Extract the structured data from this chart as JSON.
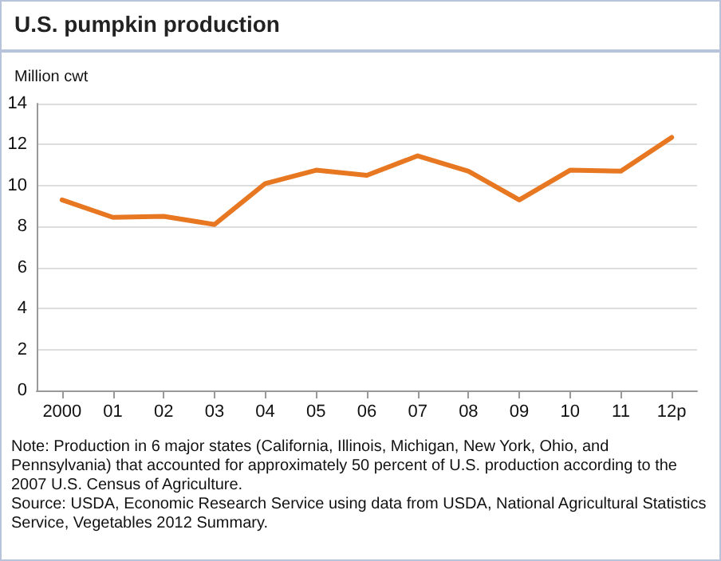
{
  "chart_data": {
    "type": "line",
    "title": "U.S. pumpkin production",
    "ylabel": "Million cwt",
    "categories": [
      "2000",
      "01",
      "02",
      "03",
      "04",
      "05",
      "06",
      "07",
      "08",
      "09",
      "10",
      "11",
      "12p"
    ],
    "series": [
      {
        "color": "#e87722",
        "values": [
          9.3,
          8.45,
          8.5,
          8.1,
          10.1,
          10.75,
          10.5,
          11.45,
          10.7,
          9.3,
          10.75,
          10.7,
          12.35
        ]
      }
    ],
    "ylim": [
      0,
      14
    ],
    "yticks": [
      0,
      2,
      4,
      6,
      8,
      10,
      12,
      14
    ],
    "grid": "y",
    "marker": "none",
    "line_style": "solid",
    "annotations": [
      "Note: Production in 6 major states (California, Illinois, Michigan, New York, Ohio, and Pennsylvania) that accounted for approximately 50 percent of U.S. production according to the 2007 U.S. Census of Agriculture.",
      "Source: USDA, Economic Research Service using data from USDA, National Agricultural Statistics Service, Vegetables 2012 Summary."
    ]
  }
}
